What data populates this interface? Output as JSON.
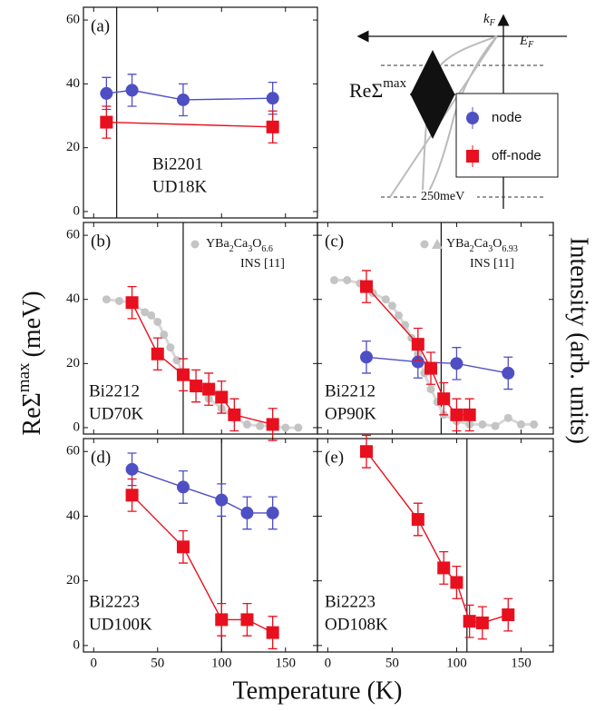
{
  "y_label": {
    "text": "ReΣ",
    "superscript": "max",
    "unit": "(meV)"
  },
  "x_label": "Temperature (K)",
  "y2_label": "Intensity (arb. units)",
  "inset": {
    "k": "k",
    "k_sub": "F",
    "e": "E",
    "e_sub": "F",
    "text": "ReΣ",
    "superscript": "max",
    "depth": "250meV"
  },
  "chart_data": [
    {
      "type": "scatter",
      "label": "(a)",
      "sample": "Bi2201",
      "doping": "UD18K",
      "tc": 18,
      "xlim": [
        -8,
        175
      ],
      "ylim": [
        -2,
        64
      ],
      "xticks": [
        0,
        50,
        100,
        150
      ],
      "yticks": [
        0,
        20,
        40,
        60
      ],
      "xtick_labels": false,
      "ytick_labels": true,
      "series": [
        {
          "name": "node",
          "color": "#4f4fc4",
          "marker": "circle",
          "x": [
            10,
            30,
            70,
            140
          ],
          "values": [
            37,
            38,
            35,
            35.5
          ],
          "errors": [
            5,
            5,
            5,
            5
          ]
        },
        {
          "name": "off-node",
          "color": "#e8101e",
          "marker": "square",
          "x": [
            10,
            140
          ],
          "values": [
            28,
            26.5
          ],
          "errors": [
            5,
            5
          ]
        }
      ]
    },
    {
      "type": "scatter",
      "label": "(b)",
      "sample": "Bi2212",
      "doping": "UD70K",
      "tc": 70,
      "xlim": [
        -8,
        175
      ],
      "ylim": [
        -2,
        64
      ],
      "xticks": [
        0,
        50,
        100,
        150
      ],
      "yticks": [
        0,
        20,
        40,
        60
      ],
      "xtick_labels": false,
      "ytick_labels": true,
      "series": [
        {
          "name": "YBa2Ca3O6.6",
          "note": "INS [11]",
          "color": "#c4c4c4",
          "marker": "dot",
          "x": [
            10,
            20,
            30,
            40,
            45,
            50,
            55,
            60,
            65,
            70,
            80,
            90,
            100,
            110,
            120,
            130,
            140,
            150,
            160
          ],
          "values": [
            40,
            39.5,
            39,
            36,
            35,
            33,
            29,
            25,
            21,
            17,
            13,
            9,
            6,
            3,
            1,
            0.5,
            0.5,
            0,
            0
          ]
        },
        {
          "color": "#e8101e",
          "marker": "square",
          "x": [
            30,
            50,
            70,
            80,
            90,
            100,
            110,
            140
          ],
          "values": [
            39,
            23,
            16.5,
            13,
            12,
            9.5,
            4,
            1
          ],
          "errors": [
            5,
            5,
            5,
            5,
            5,
            5,
            5,
            5
          ]
        }
      ]
    },
    {
      "type": "scatter",
      "label": "(c)",
      "sample": "Bi2212",
      "doping": "OP90K",
      "tc": 88,
      "xlim": [
        -8,
        175
      ],
      "ylim": [
        -2,
        64
      ],
      "xticks": [
        0,
        50,
        100,
        150
      ],
      "yticks": [
        0,
        20,
        40,
        60
      ],
      "xtick_labels": false,
      "ytick_labels": false,
      "series": [
        {
          "name": "YBa2Ca3O6.93",
          "note": "INS [11]",
          "color": "#c4c4c4",
          "marker": "dot",
          "x": [
            5,
            15,
            25,
            35,
            45,
            50,
            55,
            60,
            65,
            70,
            75,
            80,
            85,
            90,
            100,
            110,
            120,
            130,
            140,
            150,
            160
          ],
          "values": [
            46,
            46,
            45,
            42,
            40,
            38,
            35,
            32,
            28,
            23,
            17,
            12,
            8,
            4,
            2,
            1,
            1,
            0.5,
            3,
            1,
            1
          ]
        },
        {
          "color": "#4f4fc4",
          "marker": "circle",
          "x": [
            30,
            70,
            100,
            140
          ],
          "values": [
            22,
            20.5,
            20,
            17
          ],
          "errors": [
            5,
            5,
            5,
            5
          ]
        },
        {
          "color": "#e8101e",
          "marker": "square",
          "x": [
            30,
            70,
            80,
            90,
            100,
            110
          ],
          "values": [
            44,
            26,
            18.5,
            9,
            4,
            4
          ],
          "errors": [
            5,
            5,
            5,
            5,
            5,
            5
          ]
        }
      ]
    },
    {
      "type": "scatter",
      "label": "(d)",
      "sample": "Bi2223",
      "doping": "UD100K",
      "tc": 100,
      "xlim": [
        -8,
        175
      ],
      "ylim": [
        -2,
        64
      ],
      "xticks": [
        0,
        50,
        100,
        150
      ],
      "yticks": [
        0,
        20,
        40,
        60
      ],
      "xtick_labels": true,
      "ytick_labels": true,
      "series": [
        {
          "color": "#4f4fc4",
          "marker": "circle",
          "x": [
            30,
            70,
            100,
            120,
            140
          ],
          "values": [
            54.5,
            49,
            45,
            41,
            41
          ],
          "errors": [
            5,
            5,
            5,
            5,
            5
          ]
        },
        {
          "color": "#e8101e",
          "marker": "square",
          "x": [
            30,
            70,
            100,
            120,
            140
          ],
          "values": [
            46.5,
            30.5,
            8,
            8,
            4
          ],
          "errors": [
            5,
            5,
            5,
            5,
            5
          ]
        }
      ]
    },
    {
      "type": "scatter",
      "label": "(e)",
      "sample": "Bi2223",
      "doping": "OD108K",
      "tc": 108,
      "xlim": [
        -8,
        175
      ],
      "ylim": [
        -2,
        64
      ],
      "xticks": [
        0,
        50,
        100,
        150
      ],
      "yticks": [
        0,
        20,
        40,
        60
      ],
      "xtick_labels": true,
      "ytick_labels": false,
      "series": [
        {
          "color": "#e8101e",
          "marker": "square",
          "x": [
            30,
            70,
            90,
            100,
            110,
            120,
            140
          ],
          "values": [
            60,
            39,
            24,
            19.5,
            7.5,
            7,
            9.5
          ],
          "errors": [
            5,
            5,
            5,
            5,
            5,
            5,
            5
          ]
        }
      ]
    }
  ]
}
